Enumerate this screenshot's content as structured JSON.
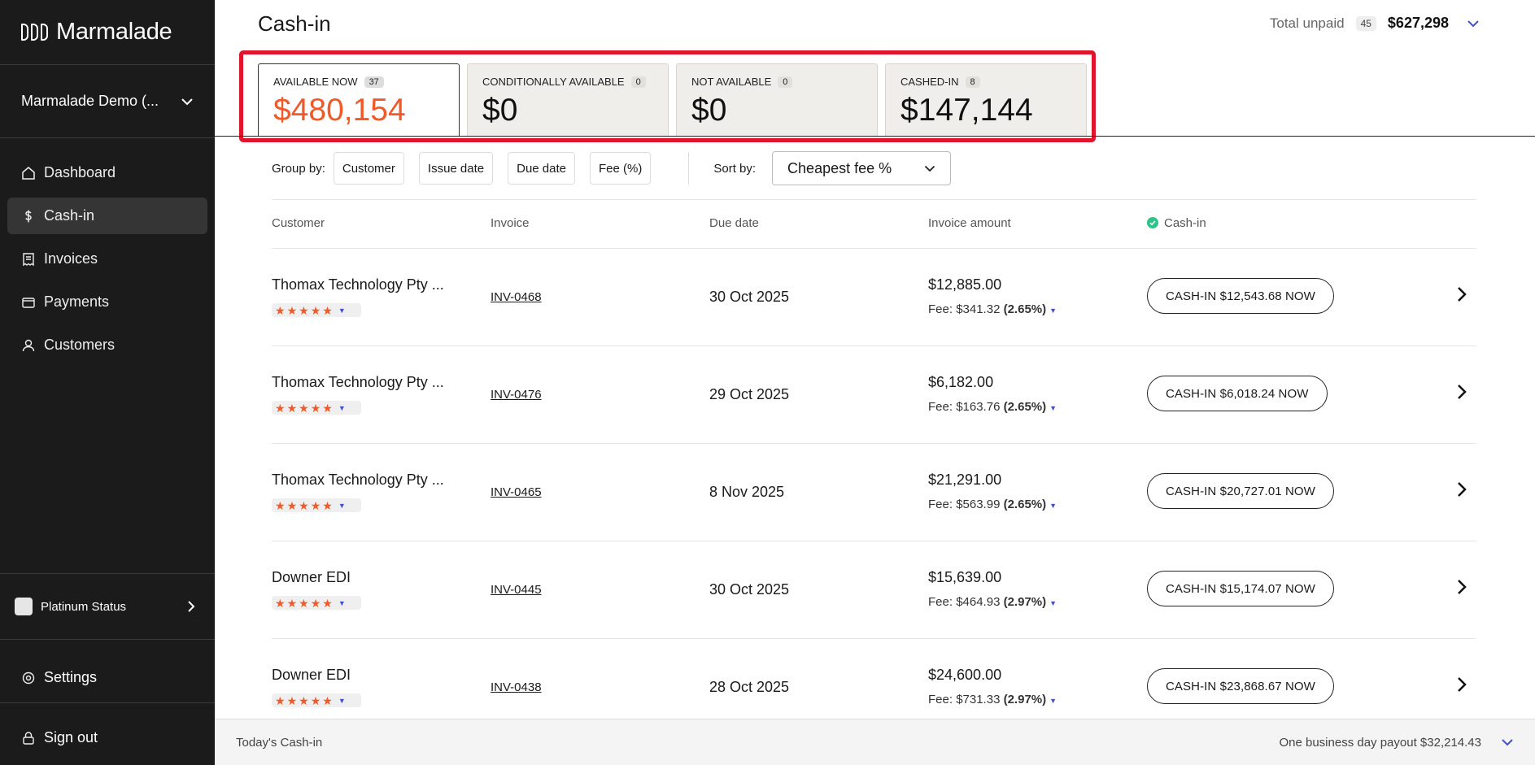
{
  "sidebar": {
    "brand": "Marmalade",
    "org": "Marmalade Demo (...",
    "nav": [
      {
        "label": "Dashboard"
      },
      {
        "label": "Cash-in"
      },
      {
        "label": "Invoices"
      },
      {
        "label": "Payments"
      },
      {
        "label": "Customers"
      }
    ],
    "status": "Platinum Status",
    "settings": "Settings",
    "signout": "Sign out"
  },
  "header": {
    "title": "Cash-in",
    "total_label": "Total unpaid",
    "total_count": "45",
    "total_amount": "$627,298"
  },
  "cards": [
    {
      "label": "AVAILABLE NOW",
      "count": "37",
      "value": "$480,154"
    },
    {
      "label": "CONDITIONALLY AVAILABLE",
      "count": "0",
      "value": "$0"
    },
    {
      "label": "NOT AVAILABLE",
      "count": "0",
      "value": "$0"
    },
    {
      "label": "CASHED-IN",
      "count": "8",
      "value": "$147,144"
    }
  ],
  "toolbar": {
    "group_label": "Group by:",
    "group_options": [
      "Customer",
      "Issue date",
      "Due date",
      "Fee (%)"
    ],
    "sort_label": "Sort by:",
    "sort_value": "Cheapest fee %"
  },
  "table": {
    "headers": {
      "customer": "Customer",
      "invoice": "Invoice",
      "due": "Due date",
      "amount": "Invoice amount",
      "cashin": "Cash-in"
    },
    "rows": [
      {
        "customer": "Thomax Technology Pty ...",
        "invoice": "INV-0468",
        "due": "30 Oct 2025",
        "amount": "$12,885.00",
        "fee_label": "Fee:",
        "fee": "$341.32",
        "fee_pct": "(2.65%)",
        "cta": "CASH-IN $12,543.68 NOW"
      },
      {
        "customer": "Thomax Technology Pty ...",
        "invoice": "INV-0476",
        "due": "29 Oct 2025",
        "amount": "$6,182.00",
        "fee_label": "Fee:",
        "fee": "$163.76",
        "fee_pct": "(2.65%)",
        "cta": "CASH-IN $6,018.24 NOW"
      },
      {
        "customer": "Thomax Technology Pty ...",
        "invoice": "INV-0465",
        "due": "8 Nov 2025",
        "amount": "$21,291.00",
        "fee_label": "Fee:",
        "fee": "$563.99",
        "fee_pct": "(2.65%)",
        "cta": "CASH-IN $20,727.01 NOW"
      },
      {
        "customer": "Downer EDI",
        "invoice": "INV-0445",
        "due": "30 Oct 2025",
        "amount": "$15,639.00",
        "fee_label": "Fee:",
        "fee": "$464.93",
        "fee_pct": "(2.97%)",
        "cta": "CASH-IN $15,174.07 NOW"
      },
      {
        "customer": "Downer EDI",
        "invoice": "INV-0438",
        "due": "28 Oct 2025",
        "amount": "$24,600.00",
        "fee_label": "Fee:",
        "fee": "$731.33",
        "fee_pct": "(2.97%)",
        "cta": "CASH-IN $23,868.67 NOW"
      }
    ]
  },
  "footer": {
    "left": "Today's Cash-in",
    "right": "One business day payout $32,214.43"
  },
  "colors": {
    "accent": "#f05a28",
    "highlight": "#e0152d",
    "sidebar": "#1b1b1b",
    "check": "#2bc48a"
  }
}
